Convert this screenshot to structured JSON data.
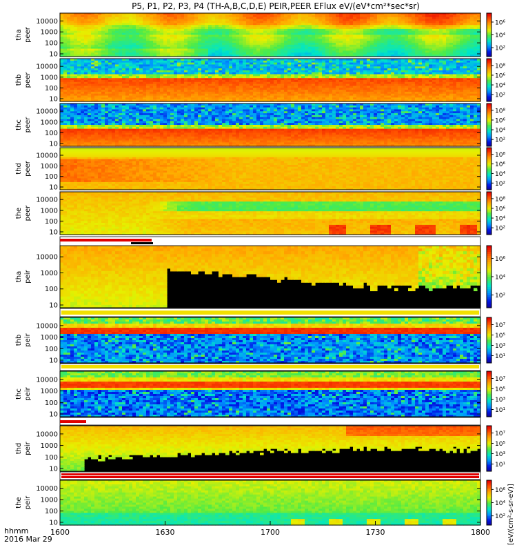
{
  "title": "P5, P1, P2, P3, P4 (TH-A,B,C,D,E) PEIR,PEER EFlux eV/(eV*cm²*sec*sr)",
  "chart_data": {
    "type": "heatmap",
    "x_ticks": [
      "1600",
      "1630",
      "1700",
      "1730",
      "1800"
    ],
    "x_label_top": "hhmm",
    "x_label_bottom": "2016 Mar 29",
    "y_ticks": [
      "10000",
      "1000",
      "100",
      "10"
    ],
    "colorbar_label": "[eV/(cm²-s-sr-eV)]",
    "panels": [
      {
        "id": "tha-peer",
        "label1": "tha",
        "label2": "peer",
        "scheme": "peer_tha",
        "cb_ticks": [
          "10⁶",
          "10⁴",
          "10²"
        ]
      },
      {
        "id": "thb-peer",
        "label1": "thb",
        "label2": "peer",
        "scheme": "peer_thb",
        "cb_ticks": [
          "10⁸",
          "10⁶",
          "10⁴",
          "10²"
        ]
      },
      {
        "id": "thc-peer",
        "label1": "thc",
        "label2": "peer",
        "scheme": "peer_thc",
        "cb_ticks": [
          "10⁸",
          "10⁶",
          "10⁴",
          "10²"
        ]
      },
      {
        "id": "thd-peer",
        "label1": "thd",
        "label2": "peer",
        "scheme": "peer_thd",
        "cb_ticks": [
          "10⁸",
          "10⁶",
          "10⁴",
          "10²"
        ]
      },
      {
        "id": "the-peer",
        "label1": "the",
        "label2": "peer",
        "scheme": "peer_the",
        "cb_ticks": [
          "10⁸",
          "10⁶",
          "10⁴",
          "10²"
        ]
      },
      {
        "id": "tha-peir",
        "label1": "tha",
        "label2": "peir",
        "scheme": "peir_tha",
        "cb_ticks": [
          "10⁶",
          "10⁴",
          "10²"
        ]
      },
      {
        "id": "thb-peir",
        "label1": "thb",
        "label2": "peir",
        "scheme": "peir_thb",
        "cb_ticks": [
          "10⁷",
          "10⁵",
          "10³",
          "10¹"
        ]
      },
      {
        "id": "thc-peir",
        "label1": "thc",
        "label2": "peir",
        "scheme": "peir_thc",
        "cb_ticks": [
          "10⁷",
          "10⁵",
          "10³",
          "10¹"
        ]
      },
      {
        "id": "thd-peir",
        "label1": "thd",
        "label2": "peir",
        "scheme": "peir_thd",
        "cb_ticks": [
          "10⁷",
          "10⁵",
          "10³",
          "10¹"
        ]
      },
      {
        "id": "the-peir",
        "label1": "the",
        "label2": "peir",
        "scheme": "peir_the",
        "cb_ticks": [
          "10⁶",
          "10⁴",
          "10²"
        ]
      }
    ]
  }
}
